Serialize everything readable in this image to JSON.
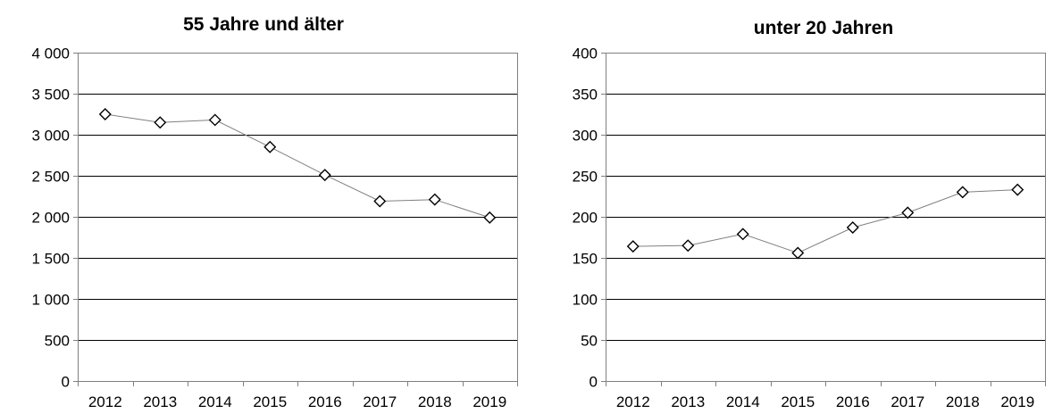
{
  "chart_data": [
    {
      "type": "line",
      "title": "55 Jahre und älter",
      "categories": [
        "2012",
        "2013",
        "2014",
        "2015",
        "2016",
        "2017",
        "2018",
        "2019"
      ],
      "series": [
        {
          "values": [
            3250,
            3150,
            3180,
            2850,
            2510,
            2190,
            2210,
            1990
          ]
        }
      ],
      "ylim": [
        0,
        4000
      ],
      "yticks": [
        0,
        500,
        1000,
        1500,
        2000,
        2500,
        3000,
        3500,
        4000
      ],
      "ytick_labels": [
        "0",
        "500",
        "1 000",
        "1 500",
        "2 000",
        "2 500",
        "3 000",
        "3 500",
        "4 000"
      ],
      "grid": true,
      "marker": "diamond",
      "colors": {
        "line": "#808080",
        "marker_stroke": "#000000",
        "marker_fill": "#ffffff",
        "grid": "#000000"
      }
    },
    {
      "type": "line",
      "title": "unter 20 Jahren",
      "categories": [
        "2012",
        "2013",
        "2014",
        "2015",
        "2016",
        "2017",
        "2018",
        "2019"
      ],
      "series": [
        {
          "values": [
            164,
            165,
            179,
            156,
            187,
            205,
            230,
            233
          ]
        }
      ],
      "ylim": [
        0,
        400
      ],
      "yticks": [
        0,
        50,
        100,
        150,
        200,
        250,
        300,
        350,
        400
      ],
      "ytick_labels": [
        "0",
        "50",
        "100",
        "150",
        "200",
        "250",
        "300",
        "350",
        "400"
      ],
      "grid": true,
      "marker": "diamond",
      "colors": {
        "line": "#808080",
        "marker_stroke": "#000000",
        "marker_fill": "#ffffff",
        "grid": "#000000"
      }
    }
  ]
}
